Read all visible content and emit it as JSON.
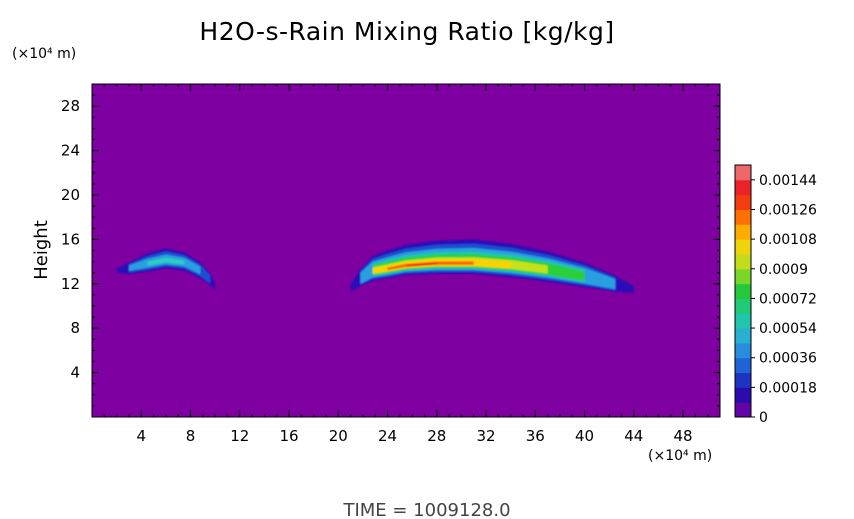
{
  "chart_data": {
    "type": "heatmap",
    "title": "H2O-s-Rain Mixing Ratio [kg/kg]",
    "ylabel": "Height",
    "x_unit": "(×10⁴ m)",
    "y_unit": "(×10⁴ m)",
    "xlim": [
      0,
      51
    ],
    "ylim": [
      0,
      30
    ],
    "xticks": [
      "4",
      "8",
      "12",
      "16",
      "20",
      "24",
      "28",
      "32",
      "36",
      "40",
      "44",
      "48"
    ],
    "yticks": [
      "4",
      "8",
      "12",
      "16",
      "20",
      "24",
      "28"
    ],
    "colorbar": {
      "min": 0,
      "max": 0.00153,
      "labels": [
        "0.00144",
        "0.00126",
        "0.00108",
        "0.0009",
        "0.00072",
        "0.00054",
        "0.00036",
        "0.00018",
        "0"
      ],
      "colors": [
        "#7f00a0",
        "#1d0db0",
        "#1e5fd6",
        "#2aa7e0",
        "#1ecca0",
        "#25c83a",
        "#b6e020",
        "#ffd000",
        "#ff6a00",
        "#e8151a",
        "#f08a8a"
      ]
    },
    "features": [
      {
        "name": "left-band",
        "x_range": [
          2.0,
          10.0
        ],
        "height_range": [
          11.5,
          15.3
        ],
        "peak_value": 0.00054
      },
      {
        "name": "right-band",
        "x_range": [
          21.0,
          44.0
        ],
        "height_range": [
          11.2,
          16.2
        ],
        "peak_value": 0.00135
      }
    ],
    "time_label": "TIME = 1009128.0",
    "background_value": 0
  }
}
